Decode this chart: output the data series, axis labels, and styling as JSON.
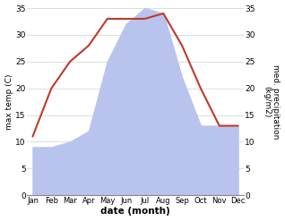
{
  "months": [
    "Jan",
    "Feb",
    "Mar",
    "Apr",
    "May",
    "Jun",
    "Jul",
    "Aug",
    "Sep",
    "Oct",
    "Nov",
    "Dec"
  ],
  "temp": [
    11,
    20,
    25,
    28,
    33,
    33,
    33,
    34,
    28,
    20,
    13,
    13
  ],
  "precip": [
    9,
    9,
    10,
    12,
    25,
    32,
    35,
    34,
    22,
    13,
    13,
    13
  ],
  "temp_color": "#c0392b",
  "precip_color": "#b8c4ee",
  "ylabel_left": "max temp (C)",
  "ylabel_right": "med. precipitation\n(kg/m2)",
  "xlabel": "date (month)",
  "ylim": [
    0,
    35
  ],
  "yticks": [
    0,
    5,
    10,
    15,
    20,
    25,
    30,
    35
  ],
  "bg_color": "#ffffff",
  "grid_color": "#d0d0d0",
  "spine_color": "#888888"
}
